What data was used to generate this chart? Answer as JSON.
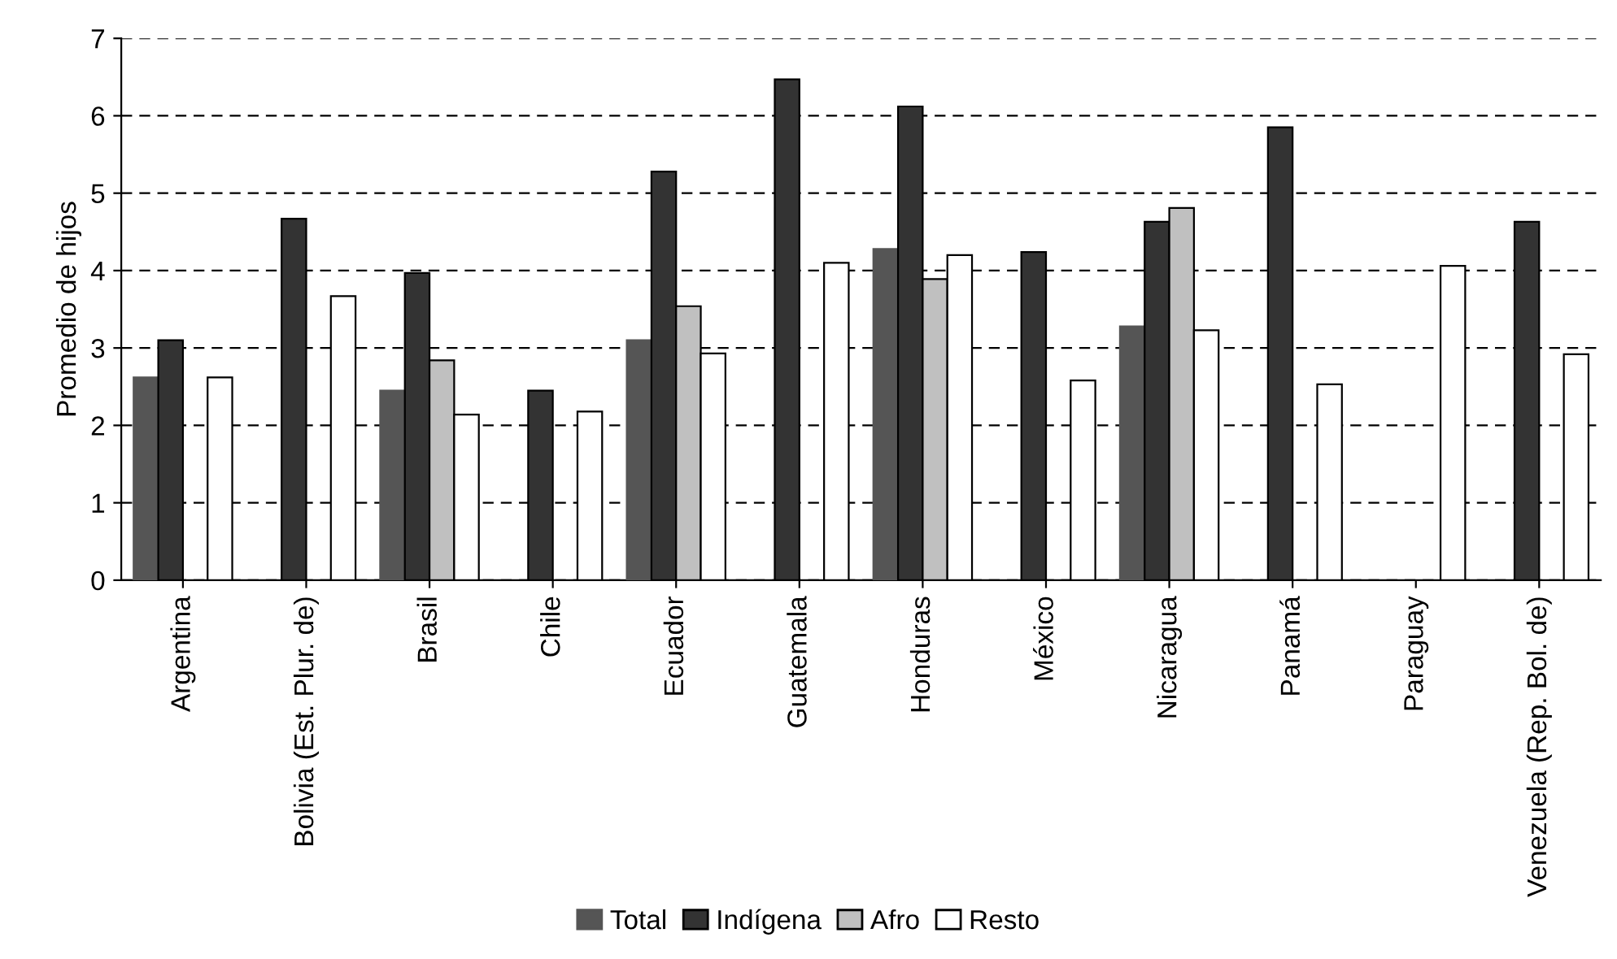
{
  "chart_data": {
    "type": "bar",
    "ylabel": "Promedio de hijos",
    "categories": [
      "Argentina",
      "Bolivia (Est. Plur. de)",
      "Brasil",
      "Chile",
      "Ecuador",
      "Guatemala",
      "Honduras",
      "México",
      "Nicaragua",
      "Panamá",
      "Paraguay",
      "Venezuela (Rep. Bol. de)"
    ],
    "series": [
      {
        "name": "Total",
        "color": "#555555",
        "values": [
          2.62,
          null,
          2.45,
          null,
          3.1,
          null,
          4.28,
          null,
          3.28,
          null,
          null,
          null
        ]
      },
      {
        "name": "Indígena",
        "color": "#333333",
        "values": [
          3.1,
          4.67,
          3.97,
          2.45,
          5.28,
          6.47,
          6.12,
          4.24,
          4.63,
          5.85,
          null,
          4.63
        ]
      },
      {
        "name": "Afro",
        "color": "#c0c0c0",
        "values": [
          null,
          null,
          2.84,
          null,
          3.54,
          null,
          3.89,
          null,
          4.81,
          null,
          null,
          null
        ]
      },
      {
        "name": "Resto",
        "color": "#ffffff",
        "values": [
          2.62,
          3.67,
          2.14,
          2.18,
          2.93,
          4.1,
          4.2,
          2.58,
          3.23,
          2.53,
          4.06,
          2.92
        ]
      }
    ],
    "ylim": [
      0,
      7
    ],
    "yticks": [
      0,
      1,
      2,
      3,
      4,
      5,
      6,
      7
    ],
    "grid": "y",
    "legend": "bottom"
  }
}
